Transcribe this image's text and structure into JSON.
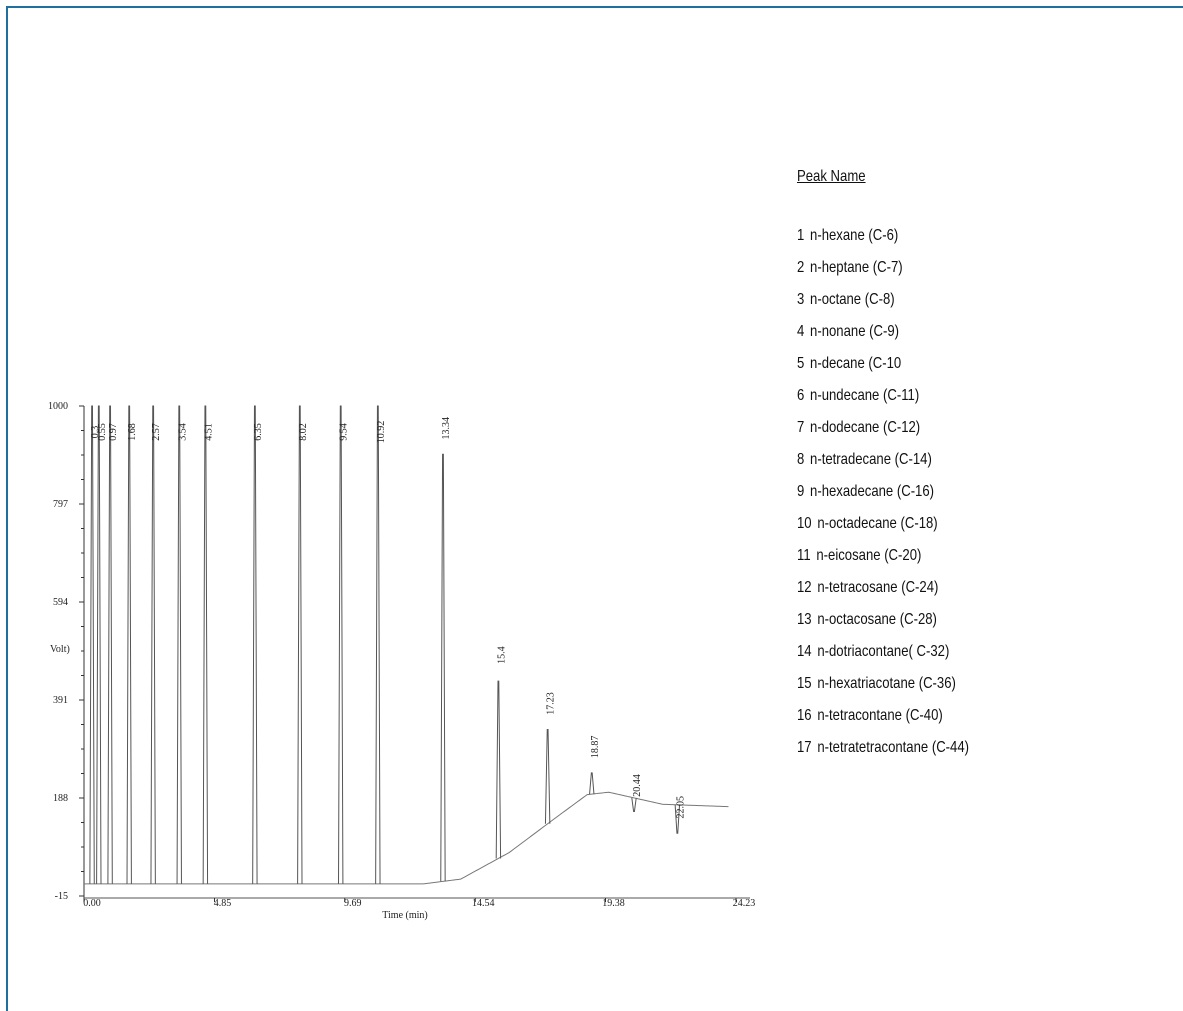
{
  "legend": {
    "title": "Peak Name",
    "items": [
      {
        "num": "1",
        "name": "n-hexane (C-6)"
      },
      {
        "num": "2",
        "name": "n-heptane (C-7)"
      },
      {
        "num": "3",
        "name": "n-octane (C-8)"
      },
      {
        "num": "4",
        "name": "n-nonane (C-9)"
      },
      {
        "num": "5",
        "name": "n-decane (C-10"
      },
      {
        "num": "6",
        "name": "n-undecane (C-11)"
      },
      {
        "num": "7",
        "name": "n-dodecane (C-12)"
      },
      {
        "num": "8",
        "name": "n-tetradecane (C-14)"
      },
      {
        "num": "9",
        "name": "n-hexadecane (C-16)"
      },
      {
        "num": "10",
        "name": "n-octadecane (C-18)"
      },
      {
        "num": "11",
        "name": "n-eicosane (C-20)"
      },
      {
        "num": "12",
        "name": "n-tetracosane (C-24)"
      },
      {
        "num": "13",
        "name": "n-octacosane (C-28)"
      },
      {
        "num": "14",
        "name": "n-dotriacontane( C-32)"
      },
      {
        "num": "15",
        "name": "n-hexatriacotane (C-36)"
      },
      {
        "num": "16",
        "name": "n-tetracontane (C-40)"
      },
      {
        "num": "17",
        "name": "n-tetratetracontane (C-44)"
      }
    ]
  },
  "chart_data": {
    "type": "line",
    "title": "",
    "xlabel": "Time (min)",
    "ylabel": "Volt)",
    "xlim": [
      0,
      24.23
    ],
    "ylim": [
      -15,
      1000
    ],
    "x_ticks": [
      "0.00",
      "4.85",
      "9.69",
      "14.54",
      "19.38",
      "24.23"
    ],
    "y_ticks": [
      "-15",
      "188",
      "391",
      "594",
      "797",
      "1000"
    ],
    "grid": false,
    "baseline": [
      [
        0,
        10
      ],
      [
        12.6,
        10
      ],
      [
        14.0,
        20
      ],
      [
        15.8,
        75
      ],
      [
        17.6,
        150
      ],
      [
        18.7,
        195
      ],
      [
        19.5,
        200
      ],
      [
        21.5,
        175
      ],
      [
        24.0,
        170
      ]
    ],
    "peaks": [
      {
        "label": "0.3",
        "time": 0.3,
        "height": 1000
      },
      {
        "label": "0.55",
        "time": 0.55,
        "height": 1000
      },
      {
        "label": "0.97",
        "time": 0.97,
        "height": 1000
      },
      {
        "label": "1.68",
        "time": 1.68,
        "height": 1000
      },
      {
        "label": "2.57",
        "time": 2.57,
        "height": 1000
      },
      {
        "label": "3.54",
        "time": 3.54,
        "height": 1000
      },
      {
        "label": "4.51",
        "time": 4.51,
        "height": 1000
      },
      {
        "label": "6.35",
        "time": 6.35,
        "height": 1000
      },
      {
        "label": "8.02",
        "time": 8.02,
        "height": 1000
      },
      {
        "label": "9.54",
        "time": 9.54,
        "height": 1000
      },
      {
        "label": "10.92",
        "time": 10.92,
        "height": 1000
      },
      {
        "label": "13.34",
        "time": 13.34,
        "height": 900
      },
      {
        "label": "15.4",
        "time": 15.4,
        "height": 430
      },
      {
        "label": "17.23",
        "time": 17.23,
        "height": 330
      },
      {
        "label": "18.87",
        "time": 18.87,
        "height": 240
      },
      {
        "label": "20.44",
        "time": 20.44,
        "height": 160
      },
      {
        "label": "22.05",
        "time": 22.05,
        "height": 115
      }
    ]
  }
}
